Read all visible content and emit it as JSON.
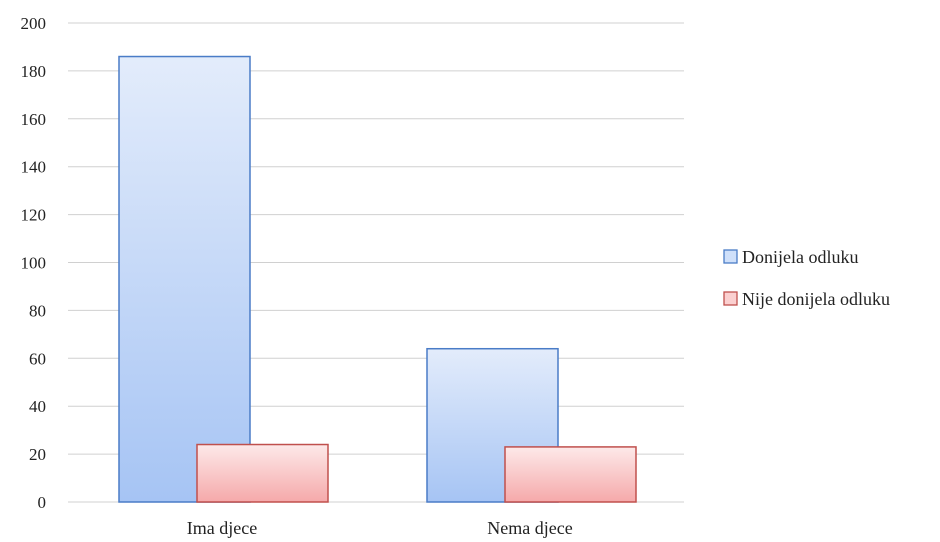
{
  "chart_data": {
    "type": "bar",
    "categories": [
      "Ima djece",
      "Nema djece"
    ],
    "series": [
      {
        "name": "Donijela odluku",
        "values": [
          186,
          64
        ],
        "color": "#4a7cc7"
      },
      {
        "name": "Nije donijela odluku",
        "values": [
          24,
          23
        ],
        "color": "#c0504d"
      }
    ],
    "ylim": [
      0,
      200
    ],
    "yticks": [
      0,
      20,
      40,
      60,
      80,
      100,
      120,
      140,
      160,
      180,
      200
    ],
    "grid": true,
    "legend_position": "right"
  }
}
